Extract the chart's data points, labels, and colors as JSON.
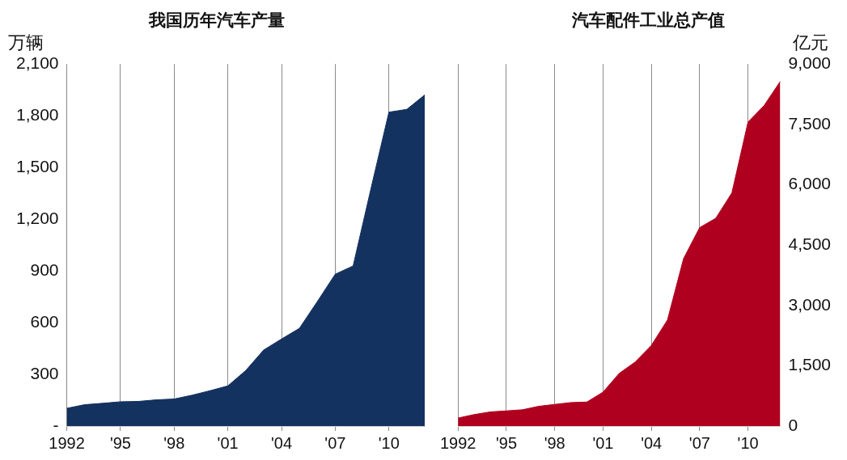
{
  "chart_data": [
    {
      "type": "area",
      "title": "我国历年汽车产量",
      "ylabel": "万辆",
      "categories": [
        "1992",
        null,
        null,
        "'95",
        null,
        null,
        "'98",
        null,
        null,
        "'01",
        null,
        null,
        "'04",
        null,
        null,
        "'07",
        null,
        null,
        "'10",
        null,
        null
      ],
      "series": [
        {
          "color": "#14325f",
          "values": [
            103,
            124,
            132,
            141,
            143,
            152,
            157,
            179,
            205,
            233,
            322,
            441,
            505,
            567,
            722,
            881,
            929,
            1379,
            1821,
            1837,
            1921
          ]
        }
      ],
      "ylim": [
        0,
        2100
      ],
      "yticks": [
        {
          "value": 0,
          "label": "-"
        },
        {
          "value": 300,
          "label": "300"
        },
        {
          "value": 600,
          "label": "600"
        },
        {
          "value": 900,
          "label": "900"
        },
        {
          "value": 1200,
          "label": "1,200"
        },
        {
          "value": 1500,
          "label": "1,500"
        },
        {
          "value": 1800,
          "label": "1,800"
        },
        {
          "value": 2100,
          "label": "2,100"
        }
      ],
      "grid": "x"
    },
    {
      "type": "area",
      "title": "汽车配件工业总产值",
      "y2label": "亿元",
      "categories": [
        "1992",
        null,
        null,
        "'95",
        null,
        null,
        "'98",
        null,
        null,
        "'01",
        null,
        null,
        "'04",
        null,
        null,
        "'07",
        null,
        null,
        "'10",
        null,
        null
      ],
      "series": [
        {
          "color": "#b0001f",
          "axis": "y2",
          "values": [
            199,
            286,
            352,
            378,
            405,
            491,
            538,
            584,
            598,
            843,
            1308,
            1594,
            2005,
            2636,
            4163,
            4934,
            5166,
            5797,
            7556,
            7968,
            8566
          ]
        }
      ],
      "y2lim": [
        0,
        9000
      ],
      "y2ticks": [
        0,
        {
          "value": 1500,
          "label": "1,500"
        },
        {
          "value": 3000,
          "label": "3,000"
        },
        {
          "value": 4500,
          "label": "4,500"
        },
        {
          "value": 6000,
          "label": "6,000"
        },
        {
          "value": 7500,
          "label": "7,500"
        },
        {
          "value": 9000,
          "label": "9,000"
        }
      ],
      "grid": "x"
    }
  ]
}
